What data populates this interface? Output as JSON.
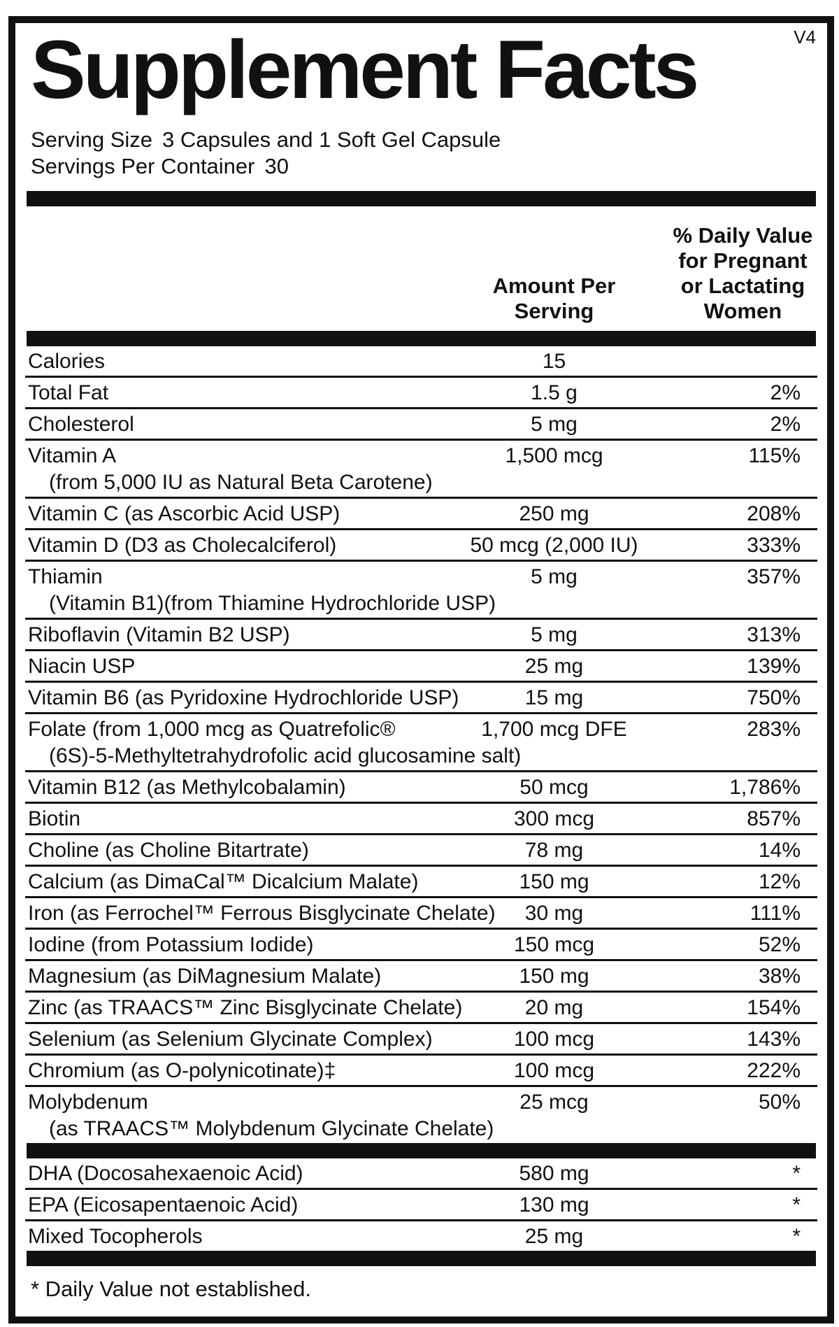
{
  "version": "V4",
  "title": "Supplement Facts",
  "serving": {
    "size_label": "Serving Size",
    "size_value": "3 Capsules and 1 Soft Gel Capsule",
    "per_container_label": "Servings Per Container",
    "per_container_value": "30"
  },
  "columns": {
    "amount_lines": [
      "Amount Per",
      "Serving"
    ],
    "dv_lines": [
      "% Daily Value",
      "for Pregnant",
      "or Lactating",
      "Women"
    ]
  },
  "main_rows": [
    {
      "name": "Calories",
      "amount": "15",
      "dv": ""
    },
    {
      "name": "Total Fat",
      "amount": "1.5 g",
      "dv": "2%"
    },
    {
      "name": "Cholesterol",
      "amount": "5 mg",
      "dv": "2%"
    },
    {
      "name": "Vitamin A",
      "name2": "(from 5,000 IU as Natural Beta Carotene)",
      "amount": "1,500 mcg",
      "dv": "115%"
    },
    {
      "name": "Vitamin C (as Ascorbic Acid USP)",
      "amount": "250 mg",
      "dv": "208%"
    },
    {
      "name": "Vitamin D (D3 as Cholecalciferol)",
      "amount": "50 mcg (2,000 IU)",
      "dv": "333%"
    },
    {
      "name": "Thiamin",
      "name2": "(Vitamin B1)(from Thiamine Hydrochloride USP)",
      "amount": "5 mg",
      "dv": "357%"
    },
    {
      "name": "Riboflavin (Vitamin B2 USP)",
      "amount": "5 mg",
      "dv": "313%"
    },
    {
      "name": "Niacin USP",
      "amount": "25 mg",
      "dv": "139%"
    },
    {
      "name": "Vitamin B6 (as Pyridoxine Hydrochloride USP)",
      "amount": "15 mg",
      "dv": "750%"
    },
    {
      "name": "Folate (from 1,000 mcg as Quatrefolic®",
      "name2": "(6S)-5-Methyltetrahydrofolic acid glucosamine salt)",
      "amount": "1,700 mcg DFE",
      "dv": "283%"
    },
    {
      "name": "Vitamin B12 (as Methylcobalamin)",
      "amount": "50 mcg",
      "dv": "1,786%"
    },
    {
      "name": "Biotin",
      "amount": "300 mcg",
      "dv": "857%"
    },
    {
      "name": "Choline (as Choline Bitartrate)",
      "amount": "78 mg",
      "dv": "14%"
    },
    {
      "name": "Calcium (as DimaCal™ Dicalcium Malate)",
      "amount": "150 mg",
      "dv": "12%"
    },
    {
      "name": "Iron (as Ferrochel™ Ferrous Bisglycinate Chelate)",
      "amount": "30 mg",
      "dv": "111%"
    },
    {
      "name": "Iodine (from Potassium Iodide)",
      "amount": "150 mcg",
      "dv": "52%"
    },
    {
      "name": "Magnesium (as DiMagnesium Malate)",
      "amount": "150 mg",
      "dv": "38%"
    },
    {
      "name": "Zinc (as TRAACS™ Zinc Bisglycinate Chelate)",
      "amount": "20 mg",
      "dv": "154%"
    },
    {
      "name": "Selenium (as Selenium Glycinate Complex)",
      "amount": "100 mcg",
      "dv": "143%"
    },
    {
      "name": "Chromium (as O-polynicotinate)‡",
      "amount": "100 mcg",
      "dv": "222%"
    },
    {
      "name": "Molybdenum",
      "name2": "(as TRAACS™ Molybdenum Glycinate Chelate)",
      "amount": "25 mcg",
      "dv": "50%"
    }
  ],
  "omega_rows": [
    {
      "name": "DHA (Docosahexaenoic Acid)",
      "amount": "580 mg",
      "dv": "*"
    },
    {
      "name": "EPA (Eicosapentaenoic Acid)",
      "amount": "130 mg",
      "dv": "*"
    },
    {
      "name": "Mixed Tocopherols",
      "amount": "25 mg",
      "dv": "*"
    }
  ],
  "footnote": "* Daily Value not established.",
  "colors": {
    "text": "#111111",
    "bar": "#111111",
    "background": "#ffffff"
  }
}
